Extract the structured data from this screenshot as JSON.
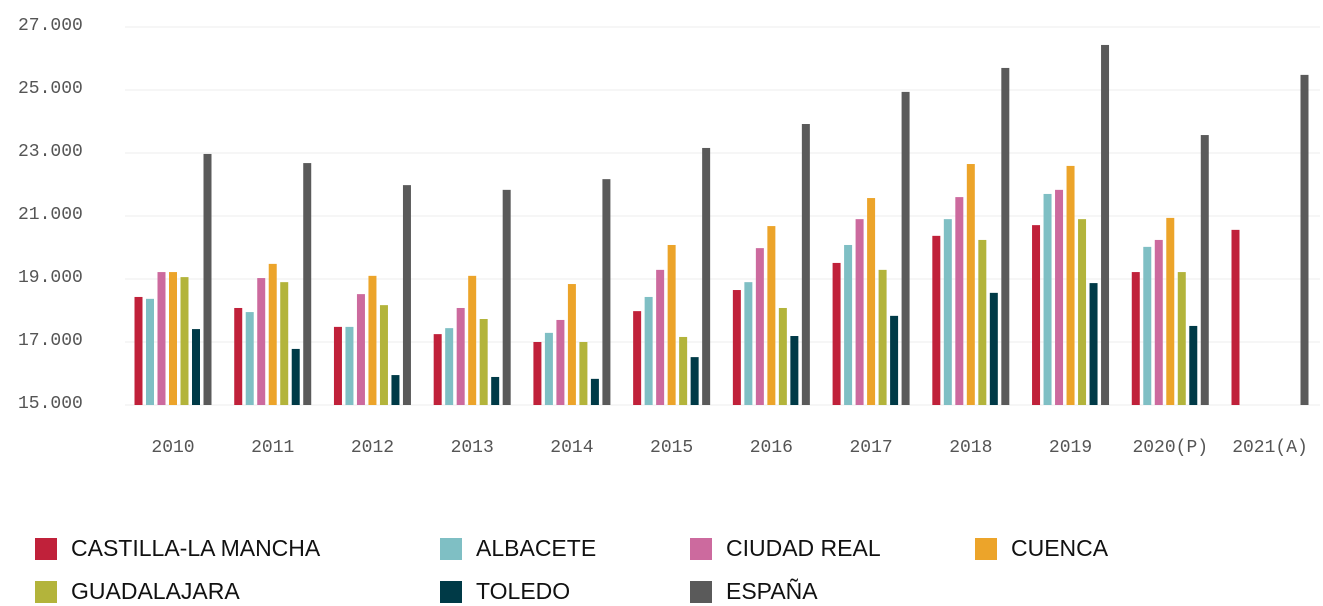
{
  "chart_data": {
    "type": "bar",
    "categories": [
      "2010",
      "2011",
      "2012",
      "2013",
      "2014",
      "2015",
      "2016",
      "2017",
      "2018",
      "2019",
      "2020(P)",
      "2021(A)"
    ],
    "series": [
      {
        "name": "CASTILLA-LA MANCHA",
        "color": "#c0213a",
        "values": [
          18430,
          18080,
          17480,
          17250,
          17000,
          17980,
          18650,
          19510,
          20370,
          20710,
          19220,
          20560
        ]
      },
      {
        "name": "ALBACETE",
        "color": "#7fbfc4",
        "values": [
          18370,
          17950,
          17480,
          17440,
          17290,
          18430,
          18900,
          20080,
          20900,
          21700,
          20020,
          null
        ]
      },
      {
        "name": "CIUDAD REAL",
        "color": "#cc6a9e",
        "values": [
          19220,
          19030,
          18520,
          18080,
          17700,
          19290,
          19980,
          20900,
          21600,
          21830,
          20240,
          null
        ]
      },
      {
        "name": "CUENCA",
        "color": "#eca42a",
        "values": [
          19220,
          19480,
          19100,
          19100,
          18840,
          20080,
          20680,
          21570,
          22650,
          22590,
          20940,
          null
        ]
      },
      {
        "name": "GUADALAJARA",
        "color": "#b3b43b",
        "values": [
          19060,
          18900,
          18170,
          17730,
          17000,
          17160,
          18080,
          19290,
          20240,
          20900,
          19220,
          null
        ]
      },
      {
        "name": "TOLEDO",
        "color": "#003a47",
        "values": [
          17410,
          16780,
          15950,
          15890,
          15830,
          16520,
          17190,
          17830,
          18560,
          18870,
          17510,
          null
        ]
      },
      {
        "name": "ESPAÑA",
        "color": "#5a5a5a",
        "values": [
          22970,
          22680,
          21980,
          21830,
          22170,
          23160,
          23920,
          24940,
          25700,
          26430,
          23570,
          25480
        ]
      }
    ],
    "ylim": [
      15000,
      27000
    ],
    "yticks": [
      {
        "value": 15000,
        "label": "15.000"
      },
      {
        "value": 17000,
        "label": "17.000"
      },
      {
        "value": 19000,
        "label": "19.000"
      },
      {
        "value": 21000,
        "label": "21.000"
      },
      {
        "value": 23000,
        "label": "23.000"
      },
      {
        "value": 25000,
        "label": "25.000"
      },
      {
        "value": 27000,
        "label": "27.000"
      }
    ],
    "grid": true
  }
}
